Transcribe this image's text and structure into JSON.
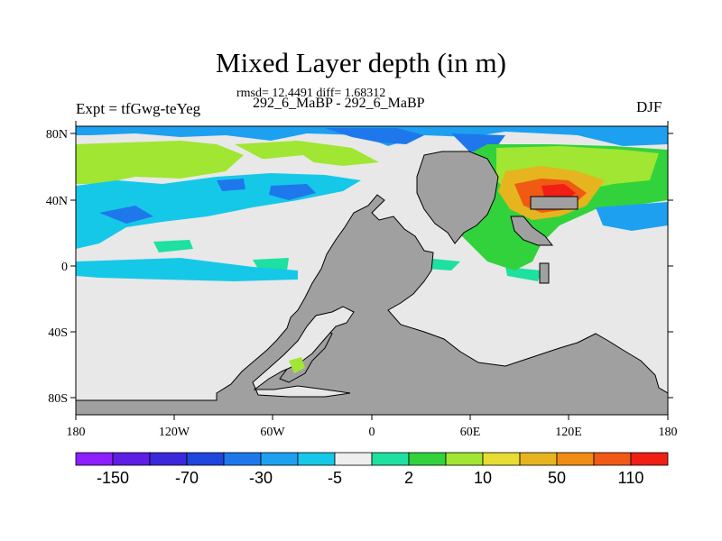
{
  "header": {
    "title": "Mixed Layer depth (in m)",
    "stats": "rmsd= 12.4491 diff= 1.68312",
    "left_label": "Expt = tfGwg-teYeg",
    "center_label": "292_6_MaBP - 292_6_MaBP",
    "right_label": "DJF"
  },
  "axes": {
    "lon_ticks": [
      "180",
      "120W",
      "60W",
      "0",
      "60E",
      "120E",
      "180"
    ],
    "lat_ticks": [
      "80N",
      "40N",
      "0",
      "40S",
      "80S"
    ]
  },
  "colorbar": {
    "colors": [
      "#8c1eff",
      "#5f1ee6",
      "#3c28dc",
      "#1e46dc",
      "#1e78ec",
      "#1ea0f0",
      "#16c8e8",
      "#eeeeee",
      "#1ee0a0",
      "#32d23c",
      "#a0e632",
      "#e6dc32",
      "#e6b41e",
      "#f08c14",
      "#f05a14",
      "#f01e14"
    ],
    "labels": [
      "-150",
      "-70",
      "-30",
      "-5",
      "2",
      "10",
      "50",
      "110"
    ]
  },
  "colors": {
    "land": "#a0a0a0",
    "neutral": "#e8e8e8"
  }
}
